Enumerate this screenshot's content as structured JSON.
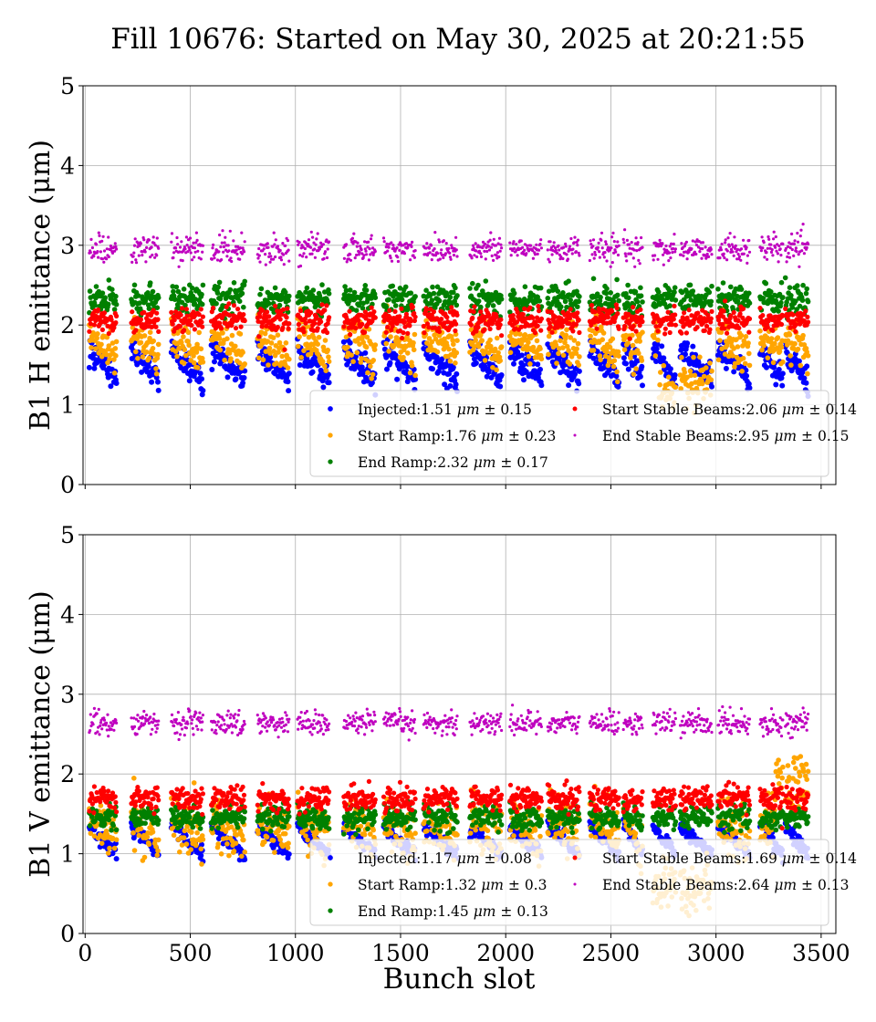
{
  "figure": {
    "title": "Fill 10676: Started on May 30, 2025 at 20:21:55",
    "xlabel": "Bunch slot"
  },
  "chart_data": [
    {
      "type": "scatter",
      "panel": "top",
      "ylabel": "B1 H emittance (μm)",
      "xlim": [
        -10,
        3570
      ],
      "ylim": [
        0,
        5
      ],
      "xticks": [
        0,
        500,
        1000,
        1500,
        2000,
        2500,
        3000,
        3500
      ],
      "xtick_labels_shown": false,
      "yticks": [
        0,
        1,
        2,
        3,
        4,
        5
      ],
      "grid": true,
      "legend_position": "lower-right",
      "trains": [
        [
          20,
          150
        ],
        [
          220,
          350
        ],
        [
          410,
          560
        ],
        [
          600,
          760
        ],
        [
          820,
          970
        ],
        [
          1010,
          1160
        ],
        [
          1230,
          1380
        ],
        [
          1420,
          1570
        ],
        [
          1610,
          1770
        ],
        [
          1830,
          1980
        ],
        [
          2020,
          2170
        ],
        [
          2200,
          2350
        ],
        [
          2400,
          2540
        ],
        [
          2560,
          2650
        ],
        [
          2700,
          2810
        ],
        [
          2830,
          2980
        ],
        [
          3010,
          3160
        ],
        [
          3210,
          3320
        ],
        [
          3330,
          3440
        ]
      ],
      "series": [
        {
          "name": "Injected",
          "stat": "1.51",
          "std": "0.15",
          "color": "#0000ff",
          "mean": 1.51,
          "spread": 0.15,
          "dropouts": []
        },
        {
          "name": "Start Ramp",
          "stat": "1.76",
          "std": "0.23",
          "color": "#ffa500",
          "mean": 1.76,
          "spread": 0.23,
          "dropouts": [
            [
              2730,
              3000,
              1.25
            ]
          ]
        },
        {
          "name": "End Ramp",
          "stat": "2.32",
          "std": "0.17",
          "color": "#008000",
          "mean": 2.32,
          "spread": 0.17,
          "dropouts": []
        },
        {
          "name": "Start Stable Beams",
          "stat": "2.06",
          "std": "0.14",
          "color": "#ff0000",
          "mean": 2.06,
          "spread": 0.14,
          "dropouts": []
        },
        {
          "name": "End Stable Beams",
          "stat": "2.95",
          "std": "0.15",
          "color": "#bf00bf",
          "mean": 2.95,
          "spread": 0.15,
          "dropouts": []
        }
      ]
    },
    {
      "type": "scatter",
      "panel": "bottom",
      "ylabel": "B1 V emittance (μm)",
      "xlim": [
        -10,
        3570
      ],
      "ylim": [
        0,
        5
      ],
      "xticks": [
        0,
        500,
        1000,
        1500,
        2000,
        2500,
        3000,
        3500
      ],
      "xtick_labels_shown": true,
      "yticks": [
        0,
        1,
        2,
        3,
        4,
        5
      ],
      "grid": true,
      "legend_position": "lower-right",
      "trains": [
        [
          20,
          150
        ],
        [
          220,
          350
        ],
        [
          410,
          560
        ],
        [
          600,
          760
        ],
        [
          820,
          970
        ],
        [
          1010,
          1160
        ],
        [
          1230,
          1380
        ],
        [
          1420,
          1570
        ],
        [
          1610,
          1770
        ],
        [
          1830,
          1980
        ],
        [
          2020,
          2170
        ],
        [
          2200,
          2350
        ],
        [
          2400,
          2540
        ],
        [
          2560,
          2650
        ],
        [
          2700,
          2810
        ],
        [
          2830,
          2980
        ],
        [
          3010,
          3160
        ],
        [
          3210,
          3320
        ],
        [
          3330,
          3440
        ]
      ],
      "series": [
        {
          "name": "Injected",
          "stat": "1.17",
          "std": "0.08",
          "color": "#0000ff",
          "mean": 1.17,
          "spread": 0.08,
          "dropouts": []
        },
        {
          "name": "Start Ramp",
          "stat": "1.32",
          "std": "0.3",
          "color": "#ffa500",
          "mean": 1.32,
          "spread": 0.3,
          "dropouts": [
            [
              2700,
              3000,
              0.6
            ],
            [
              3280,
              3440,
              1.9
            ]
          ]
        },
        {
          "name": "End Ramp",
          "stat": "1.45",
          "std": "0.13",
          "color": "#008000",
          "mean": 1.45,
          "spread": 0.13,
          "dropouts": []
        },
        {
          "name": "Start Stable Beams",
          "stat": "1.69",
          "std": "0.14",
          "color": "#ff0000",
          "mean": 1.69,
          "spread": 0.14,
          "dropouts": []
        },
        {
          "name": "End Stable Beams",
          "stat": "2.64",
          "std": "0.13",
          "color": "#bf00bf",
          "mean": 2.64,
          "spread": 0.13,
          "dropouts": []
        }
      ]
    }
  ],
  "legend": {
    "unit": "μm",
    "pm": "±"
  }
}
